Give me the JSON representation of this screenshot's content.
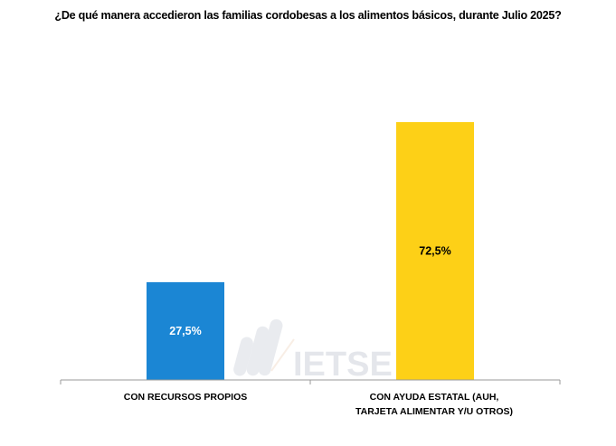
{
  "chart_data": {
    "type": "bar",
    "title": "¿De qué manera accedieron las familias cordobesas a los alimentos básicos, durante Julio 2025?",
    "categories": [
      "CON RECURSOS PROPIOS",
      "CON AYUDA ESTATAL (AUH, TARJETA ALIMENTAR Y/U OTROS)"
    ],
    "values": [
      27.5,
      72.5
    ],
    "data_labels": [
      "27,5%",
      "72,5%"
    ],
    "colors": [
      "#1B86D4",
      "#FDD017"
    ],
    "xlabel": "",
    "ylabel": "",
    "ylim": [
      0,
      80
    ],
    "grid": false,
    "legend": "none"
  },
  "watermark": "IETSE"
}
